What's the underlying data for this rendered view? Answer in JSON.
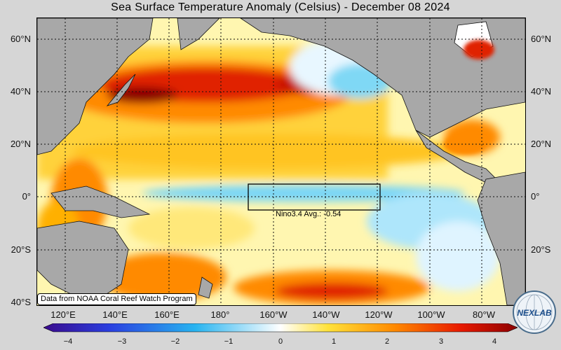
{
  "title": "Sea Surface Temperature Anomaly (Celsius) - December 08 2024",
  "map": {
    "lat_labels": [
      "60°N",
      "40°N",
      "20°N",
      "0°",
      "20°S",
      "40°S"
    ],
    "lon_labels": [
      "120°E",
      "140°E",
      "160°E",
      "180°",
      "160°W",
      "140°W",
      "120°W",
      "100°W",
      "80°W"
    ],
    "nino_box_label": "Nino3.4 Avg.: -0.54",
    "attribution": "Data from NOAA Coral Reef Watch Program"
  },
  "colorbar": {
    "ticks": [
      "−4",
      "−3",
      "−2",
      "−1",
      "0",
      "1",
      "2",
      "3",
      "4"
    ],
    "colors": [
      "#3a0a8c",
      "#2a3fe0",
      "#28b4f0",
      "#ffffff",
      "#ffe23a",
      "#ff8a00",
      "#e81a00",
      "#8c0000"
    ]
  },
  "logo": {
    "text": "NEXLAB"
  }
}
